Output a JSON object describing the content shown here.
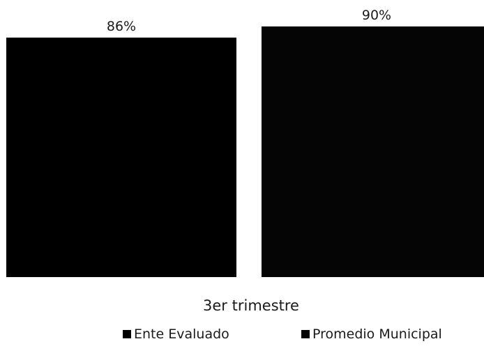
{
  "chart_data": {
    "type": "bar",
    "categories": [
      "3er trimestre"
    ],
    "series": [
      {
        "name": "Ente Evaluado",
        "values": [
          86
        ],
        "label": "86%",
        "color": "#000000"
      },
      {
        "name": "Promedio Municipal",
        "values": [
          90
        ],
        "label": "90%",
        "color": "#050505"
      }
    ],
    "unit": "%",
    "ylim": [
      0,
      100
    ],
    "grid": false,
    "legend_position": "bottom",
    "title": "",
    "xlabel": "",
    "ylabel": ""
  }
}
